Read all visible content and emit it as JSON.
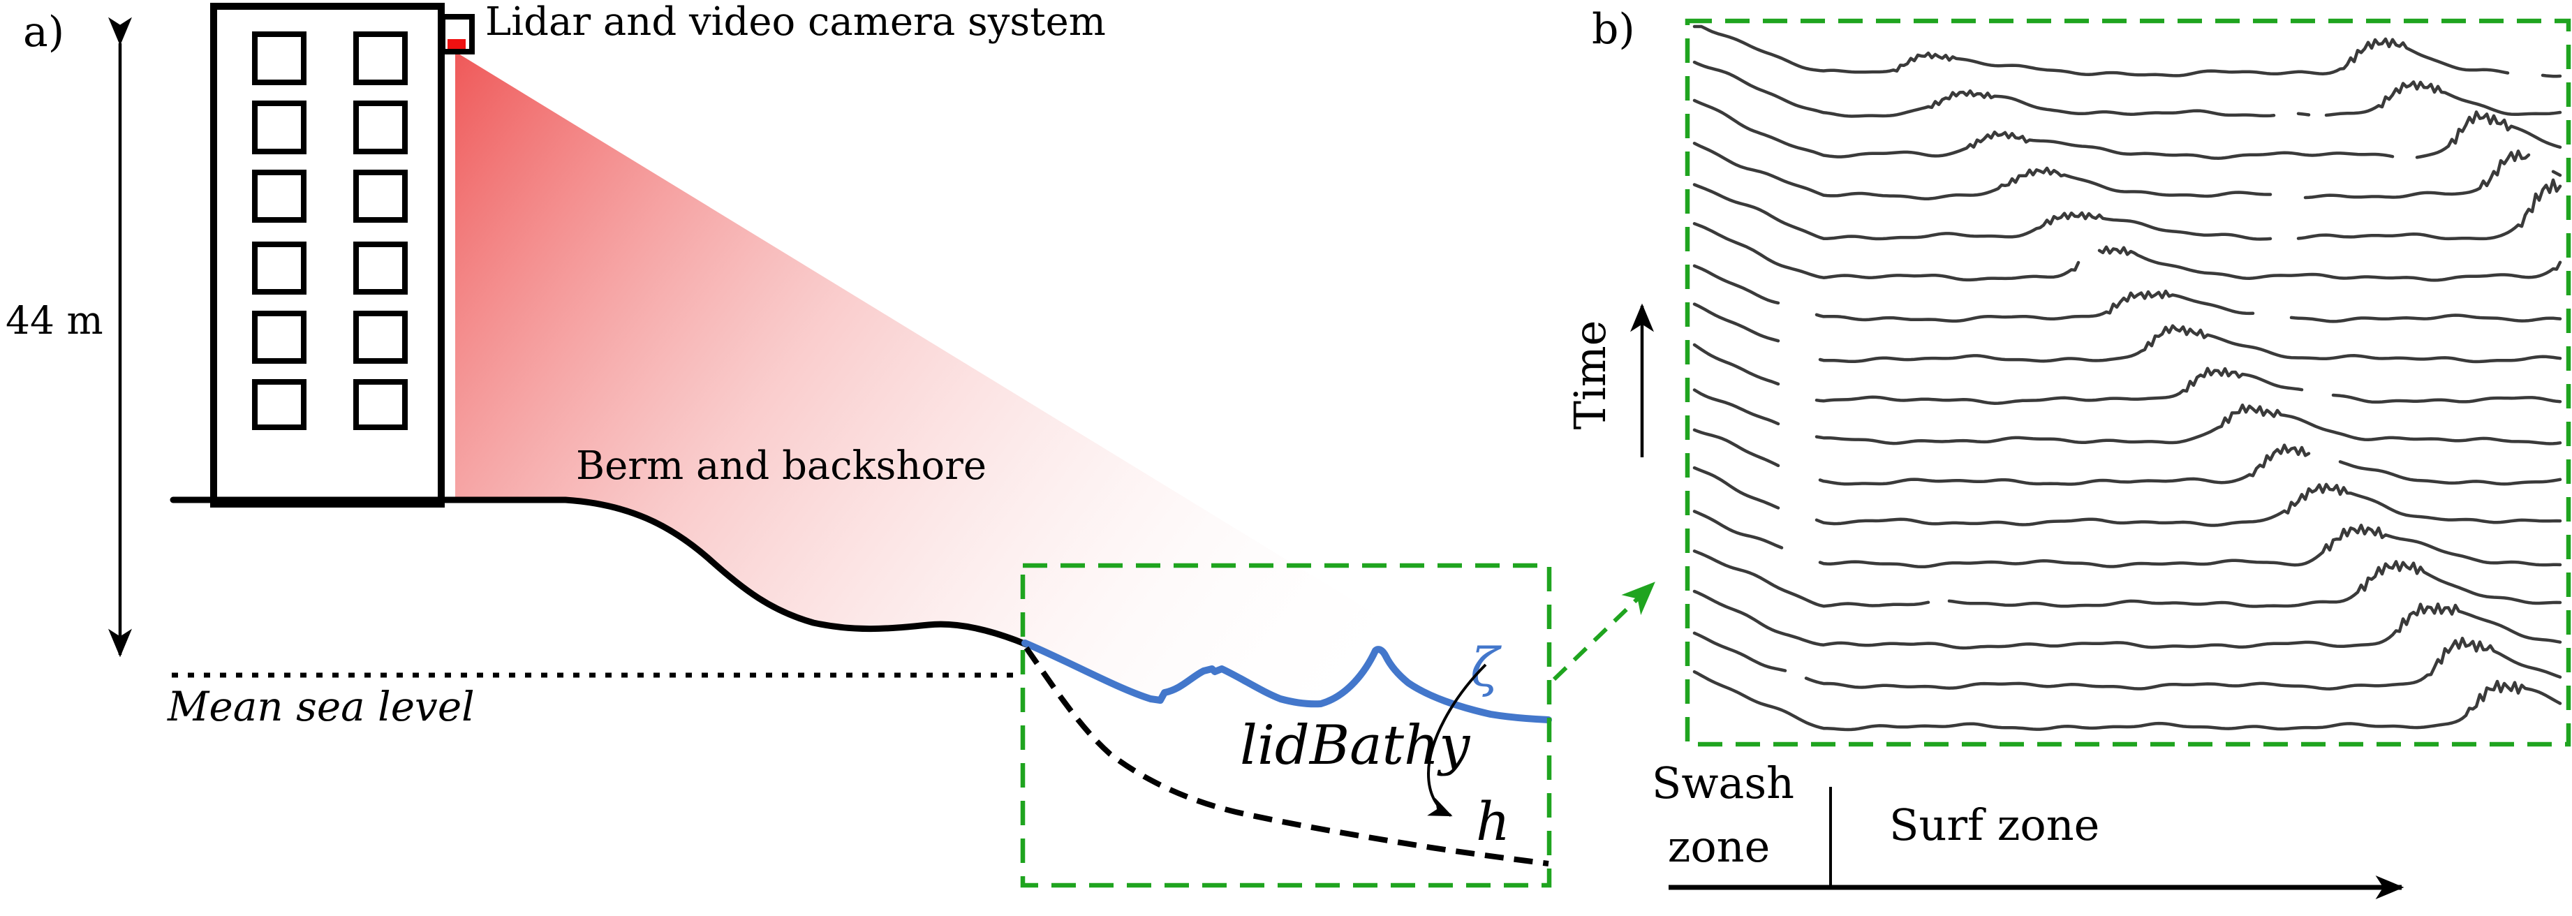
{
  "figure": {
    "panel_a_tag": "a)",
    "panel_b_tag": "b)"
  },
  "panel_a": {
    "height_label": "44 m",
    "lidar_label": "Lidar and video camera system",
    "berm_label": "Berm and backshore",
    "msl_label": "Mean sea level",
    "bathy_label": "lidBathy",
    "zeta_symbol": "ζ",
    "depth_symbol": "h"
  },
  "panel_b": {
    "time_label": "Time",
    "swash_label_line1": "Swash",
    "swash_label_line2": "zone",
    "surf_label": "Surf zone",
    "profiles": [
      {
        "b": 105,
        "c1x": 2758,
        "c1a": 26,
        "c2x": 3400,
        "c2a": 46,
        "gaps": [
          [
            3597,
            3640
          ]
        ]
      },
      {
        "b": 163,
        "c1x": 2809,
        "c1a": 28,
        "c2x": 3455,
        "c2a": 42,
        "gaps": [
          [
            3258,
            3290
          ],
          [
            3308,
            3330
          ]
        ]
      },
      {
        "b": 222,
        "c1x": 2860,
        "c1a": 30,
        "c2x": 3550,
        "c2a": 54,
        "gaps": [
          [
            3430,
            3458
          ]
        ]
      },
      {
        "b": 280,
        "c1x": 2911,
        "c1a": 32,
        "c2x": 3600,
        "c2a": 56,
        "gaps": [
          [
            3256,
            3300
          ],
          [
            3624,
            3652
          ]
        ]
      },
      {
        "b": 339,
        "c1x": 2963,
        "c1a": 34,
        "c2x": 3652,
        "c2a": 72,
        "gaps": [
          [
            3254,
            3288
          ]
        ]
      },
      {
        "b": 397,
        "c1x": 3014,
        "c1a": 36,
        "c2x": 3705,
        "c2a": 55,
        "gaps": [
          [
            2980,
            3005
          ]
        ]
      },
      {
        "b": 456,
        "c1x": 3065,
        "c1a": 38,
        "c2x": null,
        "c2a": 0,
        "gaps": [
          [
            2550,
            2600
          ],
          [
            3230,
            3278
          ]
        ]
      },
      {
        "b": 514,
        "c1x": 3116,
        "c1a": 40,
        "c2x": null,
        "c2a": 0,
        "gaps": [
          [
            2550,
            2602
          ]
        ]
      },
      {
        "b": 573,
        "c1x": 3167,
        "c1a": 42,
        "c2x": null,
        "c2a": 0,
        "gaps": [
          [
            2552,
            2600
          ],
          [
            3298,
            3340
          ]
        ]
      },
      {
        "b": 631,
        "c1x": 3219,
        "c1a": 44,
        "c2x": null,
        "c2a": 0,
        "gaps": [
          [
            2550,
            2598
          ]
        ]
      },
      {
        "b": 690,
        "c1x": 3270,
        "c1a": 46,
        "c2x": null,
        "c2a": 0,
        "gaps": [
          [
            2552,
            2604
          ],
          [
            3308,
            3348
          ]
        ]
      },
      {
        "b": 748,
        "c1x": 3321,
        "c1a": 48,
        "c2x": null,
        "c2a": 0,
        "gaps": [
          [
            2550,
            2600
          ]
        ]
      },
      {
        "b": 807,
        "c1x": 3372,
        "c1a": 50,
        "c2x": null,
        "c2a": 0,
        "gaps": [
          [
            2554,
            2602
          ]
        ]
      },
      {
        "b": 865,
        "c1x": 3424,
        "c1a": 53,
        "c2x": null,
        "c2a": 0,
        "gaps": [
          [
            2766,
            2790
          ]
        ]
      },
      {
        "b": 924,
        "c1x": 3475,
        "c1a": 56,
        "c2x": null,
        "c2a": 0,
        "gaps": []
      },
      {
        "b": 982,
        "c1x": 3526,
        "c1a": 58,
        "c2x": null,
        "c2a": 0,
        "gaps": [
          [
            2560,
            2586
          ]
        ]
      },
      {
        "b": 1041,
        "c1x": 3577,
        "c1a": 60,
        "c2x": null,
        "c2a": 0,
        "gaps": []
      }
    ]
  },
  "colors": {
    "green": "#1fa41f",
    "blue": "#4377cb",
    "beam_red": "#ee5050",
    "beam_mid": "#f5a3a3",
    "laser_red": "#ee1111",
    "profile_ink": "#3a3a3a"
  }
}
